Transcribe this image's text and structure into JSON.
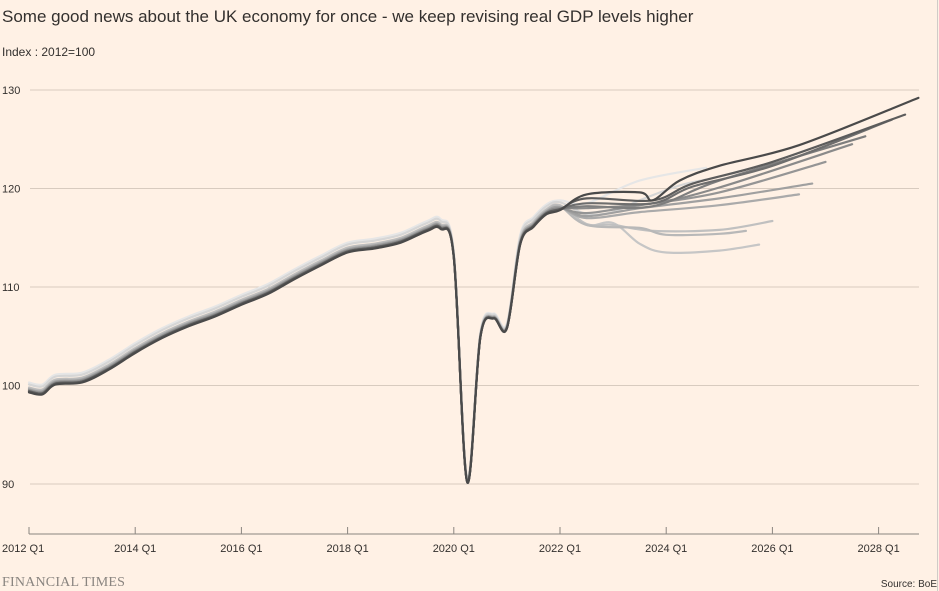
{
  "chart_data": {
    "type": "line",
    "title": "Some good news about the UK economy for once - we keep revising real GDP levels higher",
    "subtitle": "Index : 2012=100",
    "xlabel": "",
    "ylabel": "",
    "xlim": [
      2012.0,
      2028.75
    ],
    "ylim": [
      85.1,
      131
    ],
    "grid": true,
    "legend": "none",
    "y_ticks": [
      90,
      100,
      110,
      120,
      130
    ],
    "y_tick_labels": [
      "90",
      "100",
      "110",
      "120",
      "130"
    ],
    "x_ticks": [
      2012,
      2014,
      2016,
      2018,
      2020,
      2022,
      2024,
      2026,
      2028
    ],
    "x_tick_labels": [
      "2012 Q1",
      "2014 Q1",
      "2016 Q1",
      "2018 Q1",
      "2020 Q1",
      "2022 Q1",
      "2024 Q1",
      "2026 Q1",
      "2028 Q1"
    ],
    "history": [
      [
        2012.0,
        99.7
      ],
      [
        2012.25,
        99.5
      ],
      [
        2012.5,
        100.5
      ],
      [
        2013.0,
        100.7
      ],
      [
        2013.5,
        102.0
      ],
      [
        2014.0,
        103.7
      ],
      [
        2014.5,
        105.2
      ],
      [
        2015.0,
        106.4
      ],
      [
        2015.5,
        107.4
      ],
      [
        2016.0,
        108.6
      ],
      [
        2016.5,
        109.7
      ],
      [
        2017.0,
        111.2
      ],
      [
        2017.5,
        112.6
      ],
      [
        2018.0,
        113.9
      ],
      [
        2018.5,
        114.3
      ],
      [
        2019.0,
        114.9
      ],
      [
        2019.5,
        116.1
      ],
      [
        2019.75,
        116.3
      ],
      [
        2020.0,
        113.2
      ],
      [
        2020.25,
        90.4
      ],
      [
        2020.5,
        105.1
      ],
      [
        2020.75,
        107.0
      ],
      [
        2021.0,
        106.0
      ],
      [
        2021.25,
        114.7
      ],
      [
        2021.5,
        116.5
      ],
      [
        2021.75,
        117.8
      ],
      [
        2022.0,
        118.2
      ]
    ],
    "series": [
      {
        "color": "#e6e6e6",
        "offset": 0.6,
        "tail": [
          [
            2022.5,
            118.5
          ],
          [
            2023.5,
            120.8
          ],
          [
            2024.75,
            122.1
          ]
        ]
      },
      {
        "color": "#d6d6d6",
        "offset": 0.4,
        "tail": [
          [
            2022.5,
            117.4
          ],
          [
            2023.0,
            117.6
          ],
          [
            2023.5,
            118.8
          ],
          [
            2024.25,
            120.3
          ],
          [
            2024.75,
            120.9
          ]
        ]
      },
      {
        "color": "#c6c6c6",
        "offset": 0.0,
        "tail": [
          [
            2022.5,
            116.3
          ],
          [
            2023.0,
            116.5
          ],
          [
            2023.5,
            114.4
          ],
          [
            2024.0,
            113.5
          ],
          [
            2025.0,
            113.7
          ],
          [
            2025.75,
            114.3
          ]
        ]
      },
      {
        "color": "#c0c0c0",
        "offset": 0.1,
        "tail": [
          [
            2022.5,
            116.4
          ],
          [
            2023.0,
            116.3
          ],
          [
            2023.75,
            115.7
          ],
          [
            2025.0,
            115.8
          ],
          [
            2026.0,
            116.7
          ]
        ]
      },
      {
        "color": "#b8b8b8",
        "offset": 0.0,
        "tail": [
          [
            2022.5,
            116.3
          ],
          [
            2023.5,
            116.0
          ],
          [
            2024.0,
            115.3
          ],
          [
            2025.0,
            115.4
          ],
          [
            2025.5,
            115.7
          ]
        ]
      },
      {
        "color": "#aaaaaa",
        "offset": -0.1,
        "tail": [
          [
            2022.5,
            117.0
          ],
          [
            2023.5,
            117.6
          ],
          [
            2025.0,
            118.3
          ],
          [
            2026.5,
            119.4
          ]
        ]
      },
      {
        "color": "#a0a0a0",
        "offset": -0.1,
        "tail": [
          [
            2022.5,
            117.2
          ],
          [
            2023.5,
            118.0
          ],
          [
            2025.0,
            119.0
          ],
          [
            2026.75,
            120.5
          ]
        ]
      },
      {
        "color": "#959595",
        "offset": -0.2,
        "tail": [
          [
            2022.5,
            117.5
          ],
          [
            2023.5,
            118.3
          ],
          [
            2025.0,
            119.6
          ],
          [
            2027.0,
            122.7
          ]
        ]
      },
      {
        "color": "#8a8a8a",
        "offset": -0.2,
        "tail": [
          [
            2022.5,
            118.0
          ],
          [
            2023.75,
            118.5
          ],
          [
            2025.0,
            120.1
          ],
          [
            2027.5,
            124.5
          ]
        ]
      },
      {
        "color": "#7e7e7e",
        "offset": -0.3,
        "tail": [
          [
            2022.5,
            118.2
          ],
          [
            2023.75,
            118.2
          ],
          [
            2025.0,
            120.8
          ],
          [
            2027.75,
            125.3
          ]
        ]
      },
      {
        "color": "#6e6e6e",
        "offset": -0.3,
        "tail": [
          [
            2022.5,
            118.5
          ],
          [
            2023.75,
            118.5
          ],
          [
            2024.5,
            120.2
          ],
          [
            2026.0,
            122.3
          ],
          [
            2028.25,
            127.0
          ]
        ]
      },
      {
        "color": "#5c5c5c",
        "offset": -0.3,
        "tail": [
          [
            2022.5,
            119.0
          ],
          [
            2023.75,
            118.8
          ],
          [
            2024.5,
            120.5
          ],
          [
            2026.0,
            122.7
          ],
          [
            2028.5,
            127.5
          ]
        ]
      },
      {
        "color": "#4a4a4a",
        "offset": -0.4,
        "tail": [
          [
            2022.5,
            119.4
          ],
          [
            2023.5,
            119.6
          ],
          [
            2023.75,
            118.8
          ],
          [
            2024.25,
            120.8
          ],
          [
            2025.0,
            122.3
          ],
          [
            2026.5,
            124.4
          ],
          [
            2028.75,
            129.2
          ]
        ]
      }
    ]
  },
  "footer": {
    "brand": "FINANCIAL TIMES",
    "source": "Source: BoE"
  },
  "colors": {
    "background": "#fff1e5",
    "grid": "#d8cbbf"
  }
}
